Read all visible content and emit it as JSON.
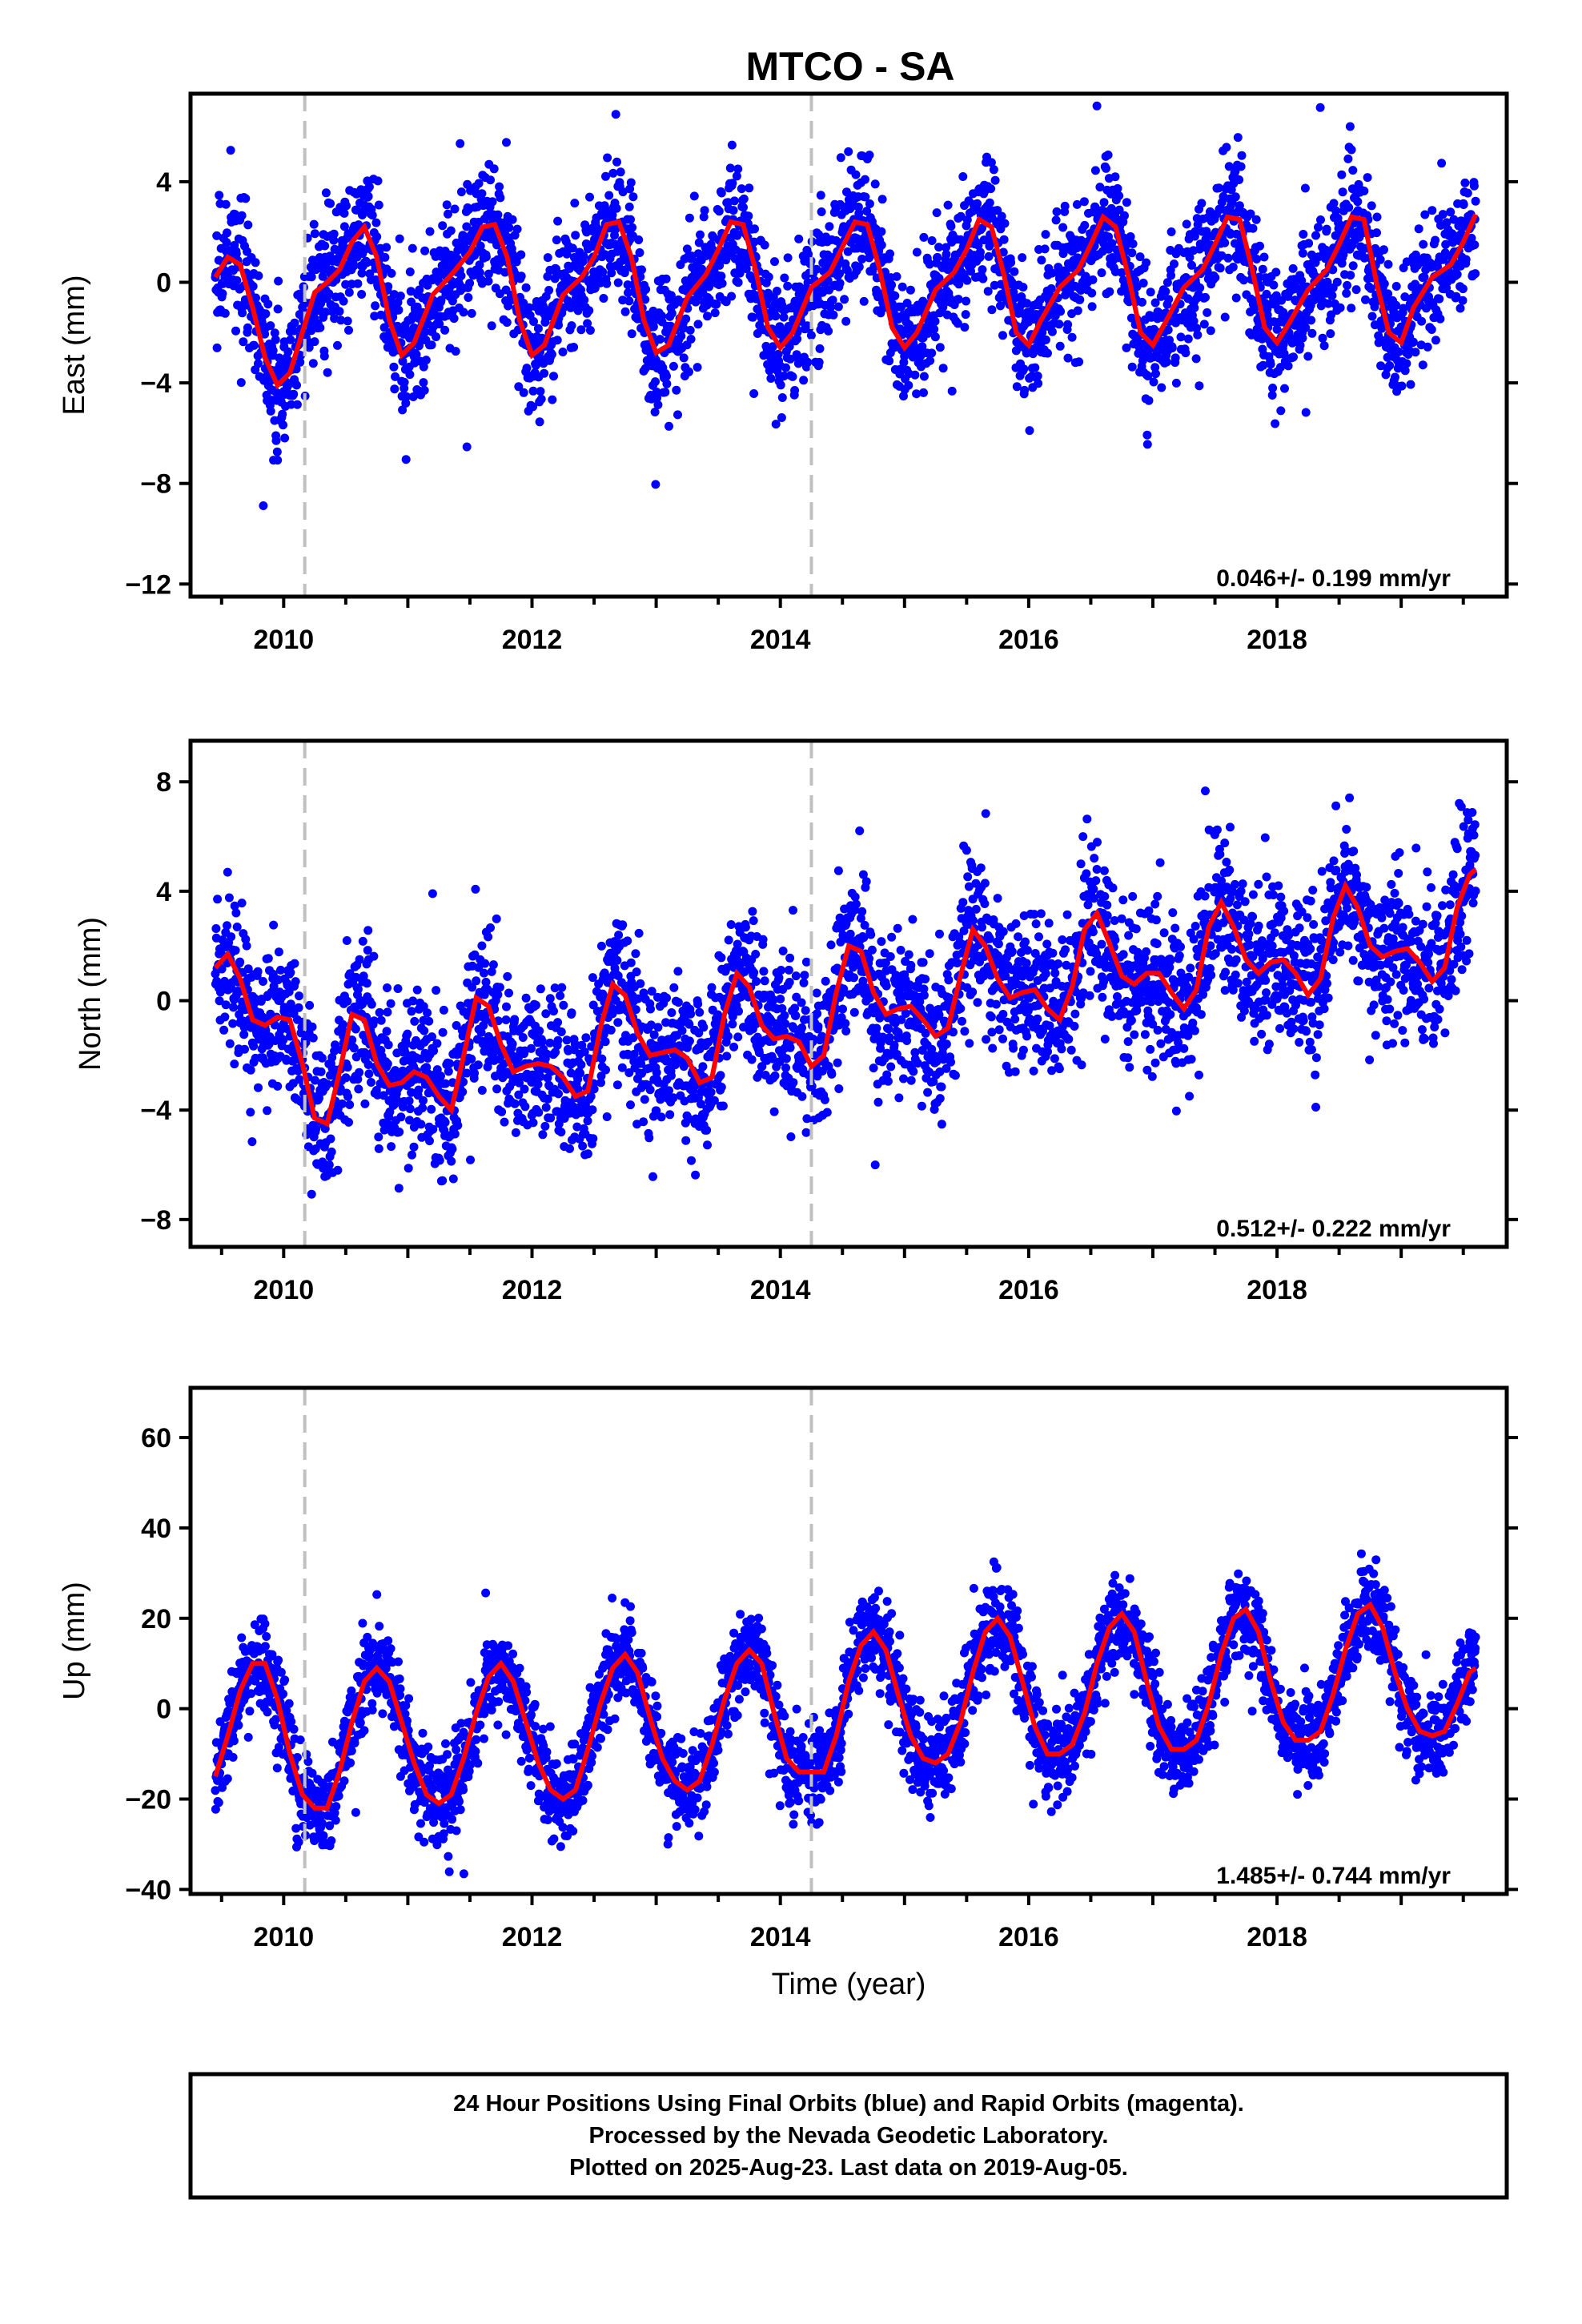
{
  "chart_data": {
    "type": "scatter",
    "title": "MTCO - SA",
    "xlabel": "Time (year)",
    "xlim": [
      2009.25,
      2019.85
    ],
    "xticks": [
      2010,
      2012,
      2014,
      2016,
      2018
    ],
    "reference_lines_x": [
      2010.17,
      2014.25
    ],
    "colors": {
      "points": "#0000ff",
      "fit": "#ff0000",
      "reference": "#c0c0c0"
    },
    "panels": [
      {
        "ylabel": "East (mm)",
        "ylim": [
          -12.5,
          7.5
        ],
        "yticks": [
          -12,
          -8,
          -4,
          0,
          4
        ],
        "rate": "0.046+/- 0.199 mm/yr",
        "series": [
          {
            "type": "line",
            "x": [
              2009.45,
              2009.55,
              2009.65,
              2009.75,
              2009.85,
              2009.95,
              2010.05,
              2010.15,
              2010.25,
              2010.35,
              2010.45,
              2010.55,
              2010.65,
              2010.75,
              2010.85,
              2010.95,
              2011.05,
              2011.2,
              2011.35,
              2011.5,
              2011.6,
              2011.7,
              2011.8,
              2011.9,
              2012.0,
              2012.1,
              2012.25,
              2012.4,
              2012.5,
              2012.6,
              2012.7,
              2012.8,
              2012.9,
              2013.0,
              2013.1,
              2013.25,
              2013.4,
              2013.5,
              2013.6,
              2013.7,
              2013.8,
              2013.9,
              2014.0,
              2014.1,
              2014.25,
              2014.4,
              2014.5,
              2014.6,
              2014.7,
              2014.8,
              2014.9,
              2015.0,
              2015.1,
              2015.25,
              2015.4,
              2015.5,
              2015.6,
              2015.7,
              2015.8,
              2015.9,
              2016.0,
              2016.1,
              2016.25,
              2016.4,
              2016.5,
              2016.6,
              2016.7,
              2016.8,
              2016.9,
              2017.0,
              2017.1,
              2017.25,
              2017.4,
              2017.5,
              2017.6,
              2017.7,
              2017.8,
              2017.9,
              2018.0,
              2018.1,
              2018.25,
              2018.4,
              2018.5,
              2018.6,
              2018.7,
              2018.8,
              2018.9,
              2019.0,
              2019.1,
              2019.25,
              2019.4,
              2019.5,
              2019.6
            ],
            "y": [
              0.2,
              1.0,
              0.7,
              -1.0,
              -3.0,
              -4.1,
              -3.6,
              -2.0,
              -0.4,
              0.0,
              0.5,
              1.6,
              2.2,
              1.0,
              -1.5,
              -2.9,
              -2.4,
              -0.5,
              0.3,
              1.2,
              2.2,
              2.3,
              1.0,
              -1.5,
              -2.9,
              -2.5,
              -0.5,
              0.2,
              1.0,
              2.3,
              2.4,
              1.0,
              -1.5,
              -2.8,
              -2.5,
              -0.6,
              0.3,
              1.3,
              2.4,
              2.3,
              0.5,
              -1.8,
              -2.6,
              -2.0,
              -0.2,
              0.4,
              1.4,
              2.4,
              2.3,
              0.5,
              -1.8,
              -2.6,
              -2.0,
              -0.3,
              0.4,
              1.3,
              2.5,
              2.2,
              0.3,
              -2.0,
              -2.5,
              -1.5,
              -0.2,
              0.5,
              1.5,
              2.6,
              2.2,
              0.3,
              -2.0,
              -2.5,
              -1.6,
              -0.2,
              0.5,
              1.5,
              2.6,
              2.5,
              0.5,
              -1.8,
              -2.4,
              -1.6,
              -0.3,
              0.5,
              1.5,
              2.6,
              2.5,
              0.0,
              -2.0,
              -2.4,
              -1.0,
              0.2,
              0.7,
              1.6,
              2.7
            ]
          }
        ]
      },
      {
        "ylabel": "North (mm)",
        "ylim": [
          -9.0,
          9.5
        ],
        "yticks": [
          -8,
          -4,
          0,
          4,
          8
        ],
        "rate": "0.512+/- 0.222 mm/yr",
        "series": [
          {
            "type": "line",
            "x": [
              2009.45,
              2009.55,
              2009.65,
              2009.75,
              2009.85,
              2009.95,
              2010.05,
              2010.15,
              2010.25,
              2010.35,
              2010.45,
              2010.55,
              2010.65,
              2010.75,
              2010.85,
              2010.95,
              2011.05,
              2011.15,
              2011.25,
              2011.35,
              2011.45,
              2011.55,
              2011.65,
              2011.75,
              2011.85,
              2011.95,
              2012.05,
              2012.15,
              2012.25,
              2012.35,
              2012.45,
              2012.55,
              2012.65,
              2012.75,
              2012.85,
              2012.95,
              2013.05,
              2013.15,
              2013.25,
              2013.35,
              2013.45,
              2013.55,
              2013.65,
              2013.75,
              2013.85,
              2013.95,
              2014.05,
              2014.15,
              2014.25,
              2014.35,
              2014.45,
              2014.55,
              2014.65,
              2014.75,
              2014.85,
              2014.95,
              2015.05,
              2015.15,
              2015.25,
              2015.35,
              2015.45,
              2015.55,
              2015.65,
              2015.75,
              2015.85,
              2015.95,
              2016.05,
              2016.15,
              2016.25,
              2016.35,
              2016.45,
              2016.55,
              2016.65,
              2016.75,
              2016.85,
              2016.95,
              2017.05,
              2017.15,
              2017.25,
              2017.35,
              2017.45,
              2017.55,
              2017.65,
              2017.75,
              2017.85,
              2017.95,
              2018.05,
              2018.15,
              2018.25,
              2018.35,
              2018.45,
              2018.55,
              2018.65,
              2018.75,
              2018.85,
              2018.95,
              2019.05,
              2019.15,
              2019.25,
              2019.35,
              2019.45,
              2019.55,
              2019.6
            ],
            "y": [
              1.2,
              1.7,
              0.8,
              -0.7,
              -0.9,
              -0.6,
              -0.7,
              -2.3,
              -4.3,
              -4.5,
              -2.6,
              -0.5,
              -0.7,
              -2.3,
              -3.1,
              -3.0,
              -2.6,
              -2.8,
              -3.5,
              -4.0,
              -2.0,
              0.1,
              -0.2,
              -1.6,
              -2.6,
              -2.4,
              -2.3,
              -2.4,
              -2.8,
              -3.5,
              -3.3,
              -1.0,
              0.6,
              0.2,
              -1.2,
              -2.0,
              -1.9,
              -1.8,
              -2.1,
              -3.0,
              -2.8,
              -0.5,
              1.0,
              0.5,
              -0.9,
              -1.4,
              -1.3,
              -1.5,
              -2.4,
              -2.0,
              0.3,
              2.0,
              1.8,
              0.3,
              -0.5,
              -0.3,
              -0.2,
              -0.7,
              -1.3,
              -1.0,
              0.9,
              2.6,
              2.0,
              0.8,
              0.1,
              0.3,
              0.4,
              -0.3,
              -0.7,
              0.5,
              2.6,
              3.2,
              2.1,
              0.9,
              0.6,
              1.0,
              1.0,
              0.3,
              -0.3,
              0.4,
              2.7,
              3.6,
              2.7,
              1.5,
              1.0,
              1.4,
              1.5,
              1.0,
              0.2,
              0.8,
              3.0,
              4.2,
              3.4,
              2.0,
              1.6,
              1.8,
              1.9,
              1.4,
              0.7,
              1.2,
              3.4,
              4.6,
              4.8
            ]
          }
        ]
      },
      {
        "ylabel": "Up (mm)",
        "ylim": [
          -41,
          71
        ],
        "yticks": [
          -40,
          -20,
          0,
          20,
          40,
          60
        ],
        "rate": "1.485+/- 0.744 mm/yr",
        "series": [
          {
            "type": "line",
            "x": [
              2009.45,
              2009.55,
              2009.65,
              2009.75,
              2009.85,
              2009.95,
              2010.05,
              2010.15,
              2010.25,
              2010.35,
              2010.45,
              2010.55,
              2010.65,
              2010.75,
              2010.85,
              2010.95,
              2011.05,
              2011.15,
              2011.25,
              2011.35,
              2011.45,
              2011.55,
              2011.65,
              2011.75,
              2011.85,
              2011.95,
              2012.05,
              2012.15,
              2012.25,
              2012.35,
              2012.45,
              2012.55,
              2012.65,
              2012.75,
              2012.85,
              2012.95,
              2013.05,
              2013.15,
              2013.25,
              2013.35,
              2013.45,
              2013.55,
              2013.65,
              2013.75,
              2013.85,
              2013.95,
              2014.05,
              2014.15,
              2014.25,
              2014.35,
              2014.45,
              2014.55,
              2014.65,
              2014.75,
              2014.85,
              2014.95,
              2015.05,
              2015.15,
              2015.25,
              2015.35,
              2015.45,
              2015.55,
              2015.65,
              2015.75,
              2015.85,
              2015.95,
              2016.05,
              2016.15,
              2016.25,
              2016.35,
              2016.45,
              2016.55,
              2016.65,
              2016.75,
              2016.85,
              2016.95,
              2017.05,
              2017.15,
              2017.25,
              2017.35,
              2017.45,
              2017.55,
              2017.65,
              2017.75,
              2017.85,
              2017.95,
              2018.05,
              2018.15,
              2018.25,
              2018.35,
              2018.45,
              2018.55,
              2018.65,
              2018.75,
              2018.85,
              2018.95,
              2019.05,
              2019.15,
              2019.25,
              2019.35,
              2019.45,
              2019.55,
              2019.6
            ],
            "y": [
              -15,
              -6,
              4,
              10,
              10,
              2,
              -10,
              -19,
              -22,
              -22,
              -14,
              -3,
              6,
              9,
              6,
              -3,
              -12,
              -19,
              -21,
              -19,
              -11,
              -1,
              7,
              10,
              6,
              -3,
              -12,
              -18,
              -20,
              -18,
              -9,
              1,
              9,
              12,
              8,
              -2,
              -11,
              -16,
              -18,
              -16,
              -8,
              2,
              10,
              13,
              10,
              -1,
              -11,
              -14,
              -14,
              -14,
              -6,
              6,
              14,
              17,
              13,
              3,
              -6,
              -11,
              -12,
              -10,
              -3,
              8,
              17,
              20,
              16,
              6,
              -4,
              -10,
              -10,
              -8,
              -1,
              10,
              18,
              21,
              17,
              6,
              -4,
              -9,
              -9,
              -7,
              1,
              12,
              20,
              22,
              17,
              6,
              -3,
              -7,
              -7,
              -5,
              3,
              13,
              21,
              23,
              18,
              8,
              0,
              -5,
              -6,
              -5,
              1,
              8,
              9
            ]
          }
        ]
      }
    ]
  },
  "footer": {
    "line1": "24 Hour Positions Using Final Orbits (blue) and Rapid Orbits (magenta).",
    "line2": "Processed by the Nevada Geodetic Laboratory.",
    "line3": "Plotted on 2025-Aug-23. Last data on 2019-Aug-05."
  }
}
